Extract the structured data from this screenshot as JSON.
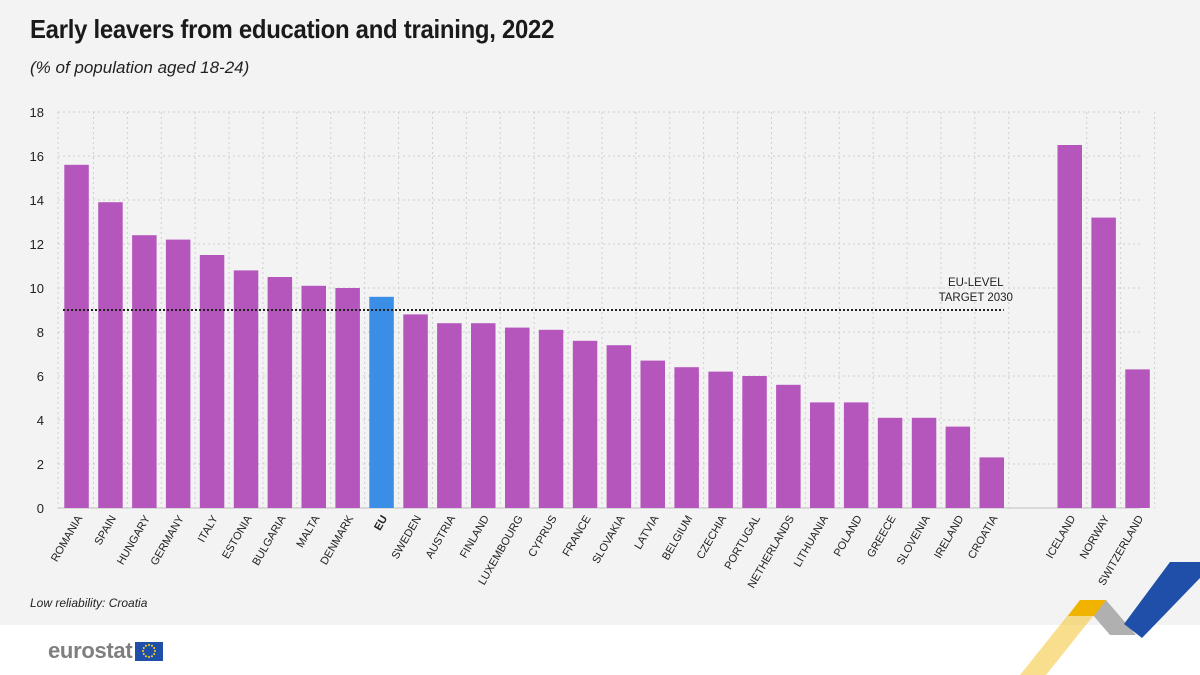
{
  "header": {
    "title": "Early leavers from education and training, 2022",
    "subtitle": "(% of population aged 18-24)"
  },
  "footnote": "Low reliability: Croatia",
  "logo": {
    "text": "eurostat",
    "flag_icon": "eu-flag-icon"
  },
  "colors": {
    "bar": "#b556bd",
    "eu_bar": "#3a8ee6",
    "grid": "#cfcfcf",
    "target_line": "#222222",
    "background": "#f3f3f3"
  },
  "chart_data": {
    "type": "bar",
    "title": "Early leavers from education and training, 2022",
    "subtitle": "(% of population aged 18-24)",
    "categories": [
      "ROMANIA",
      "SPAIN",
      "HUNGARY",
      "GERMANY",
      "ITALY",
      "ESTONIA",
      "BULGARIA",
      "MALTA",
      "DENMARK",
      "EU",
      "SWEDEN",
      "AUSTRIA",
      "FINLAND",
      "LUXEMBOURG",
      "CYPRUS",
      "FRANCE",
      "SLOVAKIA",
      "LATVIA",
      "BELGIUM",
      "CZECHIA",
      "PORTUGAL",
      "NETHERLANDS",
      "LITHUANIA",
      "POLAND",
      "GREECE",
      "SLOVENIA",
      "IRELAND",
      "CROATIA",
      "ICELAND",
      "NORWAY",
      "SWITZERLAND"
    ],
    "values": [
      15.6,
      13.9,
      12.4,
      12.2,
      11.5,
      10.8,
      10.5,
      10.1,
      10.0,
      9.6,
      8.8,
      8.4,
      8.4,
      8.2,
      8.1,
      7.6,
      7.4,
      6.7,
      6.4,
      6.2,
      6.0,
      5.6,
      4.8,
      4.8,
      4.1,
      4.1,
      3.7,
      2.3,
      16.5,
      13.2,
      6.3
    ],
    "highlight": "EU",
    "group_gap_before": "ICELAND",
    "ylim": [
      0,
      18
    ],
    "yticks": [
      0,
      2,
      4,
      6,
      8,
      10,
      12,
      14,
      16,
      18
    ],
    "grid": true,
    "annotations": [
      {
        "type": "hline",
        "y": 9,
        "label_lines": [
          "EU-LEVEL",
          "TARGET 2030"
        ],
        "style": "dotted"
      }
    ]
  }
}
